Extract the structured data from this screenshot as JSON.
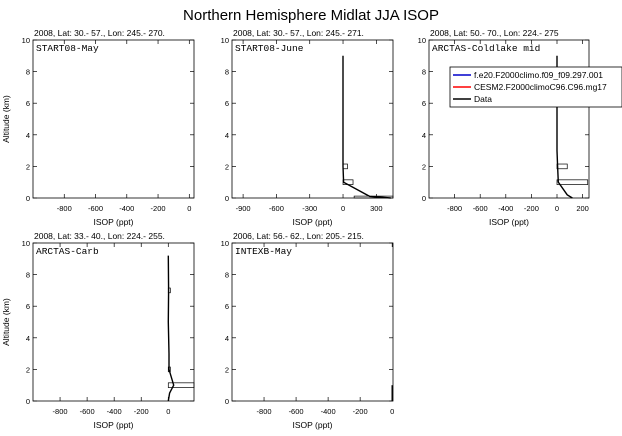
{
  "title": "Northern Hemisphere Midlat JJA ISOP",
  "legend": {
    "entries": [
      {
        "label": "f.e20.F2000climo.f09_f09.297.001",
        "color": "#0000cc"
      },
      {
        "label": "CESM2.F2000climoC96.C96.mg17",
        "color": "#ff0000"
      },
      {
        "label": "Data",
        "color": "#000000"
      }
    ]
  },
  "chart_data": [
    {
      "type": "line",
      "header": "2008, Lat:  30.- 57., Lon: 245.- 270.",
      "campaign": "START08-May",
      "xlabel": "ISOP (ppt)",
      "ylabel": "Altitude (km)",
      "xlim": [
        -1000,
        30
      ],
      "ylim": [
        0,
        10
      ],
      "xticks": [
        -800,
        -600,
        -400,
        -200,
        0
      ],
      "yticks": [
        0,
        2,
        4,
        6,
        8,
        10
      ],
      "series": [],
      "boxes": []
    },
    {
      "type": "line",
      "header": "2008, Lat:  30.- 57., Lon: 245.- 271.",
      "campaign": "START08-June",
      "xlabel": "ISOP (ppt)",
      "ylabel": "",
      "xlim": [
        -1000,
        450
      ],
      "ylim": [
        0,
        10
      ],
      "xticks": [
        -900,
        -600,
        -300,
        0,
        300
      ],
      "yticks": [
        0,
        2,
        4,
        6,
        8,
        10
      ],
      "series": [
        {
          "name": "Data",
          "color": "#000000",
          "points": [
            [
              0,
              9.0
            ],
            [
              0,
              6.0
            ],
            [
              0,
              3.0
            ],
            [
              0,
              2.0
            ],
            [
              5,
              1.0
            ],
            [
              240,
              0.1
            ],
            [
              430,
              0.0
            ]
          ]
        }
      ],
      "boxes": [
        [
          0,
          40,
          1.85,
          2.15
        ],
        [
          0,
          90,
          0.85,
          1.15
        ],
        [
          100,
          450,
          0.0,
          0.12
        ]
      ]
    },
    {
      "type": "line",
      "header": "2008, Lat:  50.- 70., Lon: 224.- 275",
      "campaign": "ARCTAS-Coldlake mid",
      "xlabel": "ISOP (ppt)",
      "ylabel": "",
      "xlim": [
        -1000,
        250
      ],
      "ylim": [
        0,
        10
      ],
      "xticks": [
        -800,
        -600,
        -400,
        -200,
        0,
        200
      ],
      "yticks": [
        0,
        2,
        4,
        6,
        8,
        10
      ],
      "series": [
        {
          "name": "Data",
          "color": "#000000",
          "points": [
            [
              0,
              9.0
            ],
            [
              0,
              6.0
            ],
            [
              0,
              3.0
            ],
            [
              5,
              2.0
            ],
            [
              10,
              1.0
            ],
            [
              80,
              0.2
            ],
            [
              120,
              0.0
            ]
          ]
        }
      ],
      "boxes": [
        [
          0,
          80,
          1.85,
          2.15
        ],
        [
          0,
          240,
          0.85,
          1.15
        ]
      ]
    },
    {
      "type": "line",
      "header": "2008, Lat:  33.- 40., Lon: 224.- 255.",
      "campaign": "ARCTAS-Carb",
      "xlabel": "ISOP (ppt)",
      "ylabel": "Altitude (km)",
      "xlim": [
        -1000,
        190
      ],
      "ylim": [
        0,
        10
      ],
      "xticks": [
        -800,
        -600,
        -400,
        -200,
        0
      ],
      "yticks": [
        0,
        2,
        4,
        6,
        8,
        10
      ],
      "series": [
        {
          "name": "Data",
          "color": "#000000",
          "points": [
            [
              0,
              9.2
            ],
            [
              2,
              7.0
            ],
            [
              0,
              5.0
            ],
            [
              5,
              3.0
            ],
            [
              5,
              2.0
            ],
            [
              40,
              1.0
            ],
            [
              10,
              0.5
            ],
            [
              0,
              0.0
            ]
          ]
        }
      ],
      "boxes": [
        [
          0,
          15,
          6.85,
          7.15
        ],
        [
          0,
          15,
          1.85,
          2.15
        ],
        [
          0,
          190,
          0.85,
          1.15
        ]
      ]
    },
    {
      "type": "line",
      "header": "2006, Lat: 56.- 62., Lon: 205.- 215.",
      "campaign": "INTEXB-May",
      "xlabel": "ISOP (ppt)",
      "ylabel": "",
      "xlim": [
        -1000,
        5
      ],
      "ylim": [
        0,
        10
      ],
      "xticks": [
        -800,
        -600,
        -400,
        -200,
        0
      ],
      "yticks": [
        0,
        2,
        4,
        6,
        8,
        10
      ],
      "series": [
        {
          "name": "Data",
          "color": "#000000",
          "points": [
            [
              0,
              0.0
            ],
            [
              0,
              1.0
            ]
          ]
        }
      ],
      "boxes": []
    }
  ]
}
